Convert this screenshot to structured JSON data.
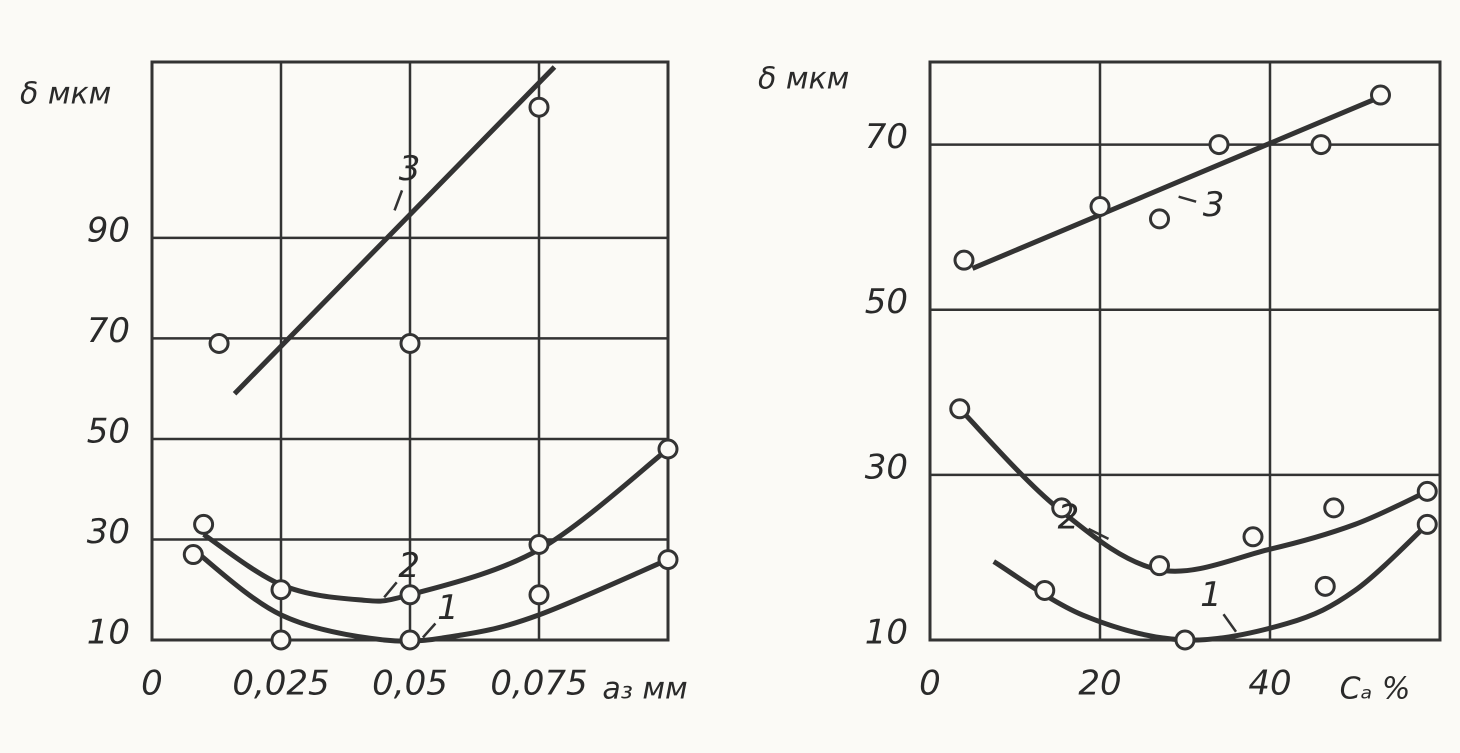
{
  "chart_data": [
    {
      "type": "line",
      "y_label": "δ мкм",
      "x_label": "a₃ мм",
      "xlim": [
        0,
        0.1
      ],
      "ylim": [
        10,
        125
      ],
      "xticks": [
        0,
        {
          "value": 0.025,
          "label": "0,025"
        },
        {
          "value": 0.05,
          "label": "0,05"
        },
        {
          "value": 0.075,
          "label": "0,075"
        }
      ],
      "yticks": [
        10,
        30,
        50,
        70,
        90
      ],
      "grid": true,
      "color": "#333333",
      "series": [
        {
          "name": "1",
          "x": [
            0.008,
            0.025,
            0.05,
            0.075,
            0.1
          ],
          "values": [
            27,
            10,
            10,
            19,
            26
          ],
          "fit_x": [
            0.008,
            0.025,
            0.045,
            0.06,
            0.075,
            0.1
          ],
          "fit_values": [
            28,
            15,
            10,
            11,
            15,
            26
          ]
        },
        {
          "name": "2",
          "x": [
            0.01,
            0.025,
            0.05,
            0.075,
            0.1
          ],
          "values": [
            33,
            20,
            19,
            29,
            48
          ],
          "fit_x": [
            0.01,
            0.025,
            0.04,
            0.05,
            0.075,
            0.1
          ],
          "fit_values": [
            31,
            21,
            18,
            19,
            28,
            48
          ]
        },
        {
          "name": "3",
          "x": [
            0.013,
            0.05,
            0.075
          ],
          "values": [
            69,
            69,
            116
          ],
          "fit_x": [
            0.016,
            0.078
          ],
          "fit_values": [
            59,
            124
          ]
        }
      ]
    },
    {
      "type": "line",
      "y_label": "δ мкм",
      "x_label": "Cₐ %",
      "xlim": [
        0,
        60
      ],
      "ylim": [
        10,
        80
      ],
      "xticks": [
        0,
        20,
        40
      ],
      "yticks": [
        10,
        30,
        50,
        70
      ],
      "grid": true,
      "color": "#333333",
      "series": [
        {
          "name": "1",
          "x": [
            13.5,
            30,
            46.5,
            58.5
          ],
          "values": [
            16,
            10,
            16.5,
            24
          ],
          "fit_x": [
            7.5,
            18,
            30,
            42,
            50,
            58.5
          ],
          "fit_values": [
            19.5,
            13,
            10,
            12,
            16,
            24
          ]
        },
        {
          "name": "2",
          "x": [
            3.5,
            15.5,
            27,
            38,
            47.5,
            58.5
          ],
          "values": [
            38,
            26,
            19,
            22.5,
            26,
            28
          ],
          "fit_x": [
            3.5,
            15,
            27,
            40,
            50,
            58.5
          ],
          "fit_values": [
            38,
            26,
            18.5,
            21,
            24,
            28
          ]
        },
        {
          "name": "3",
          "x": [
            4,
            20,
            27,
            34,
            46,
            53
          ],
          "values": [
            56,
            62.5,
            61,
            70,
            70,
            76
          ],
          "fit_x": [
            5,
            53.5
          ],
          "fit_values": [
            55,
            76
          ]
        }
      ]
    }
  ]
}
